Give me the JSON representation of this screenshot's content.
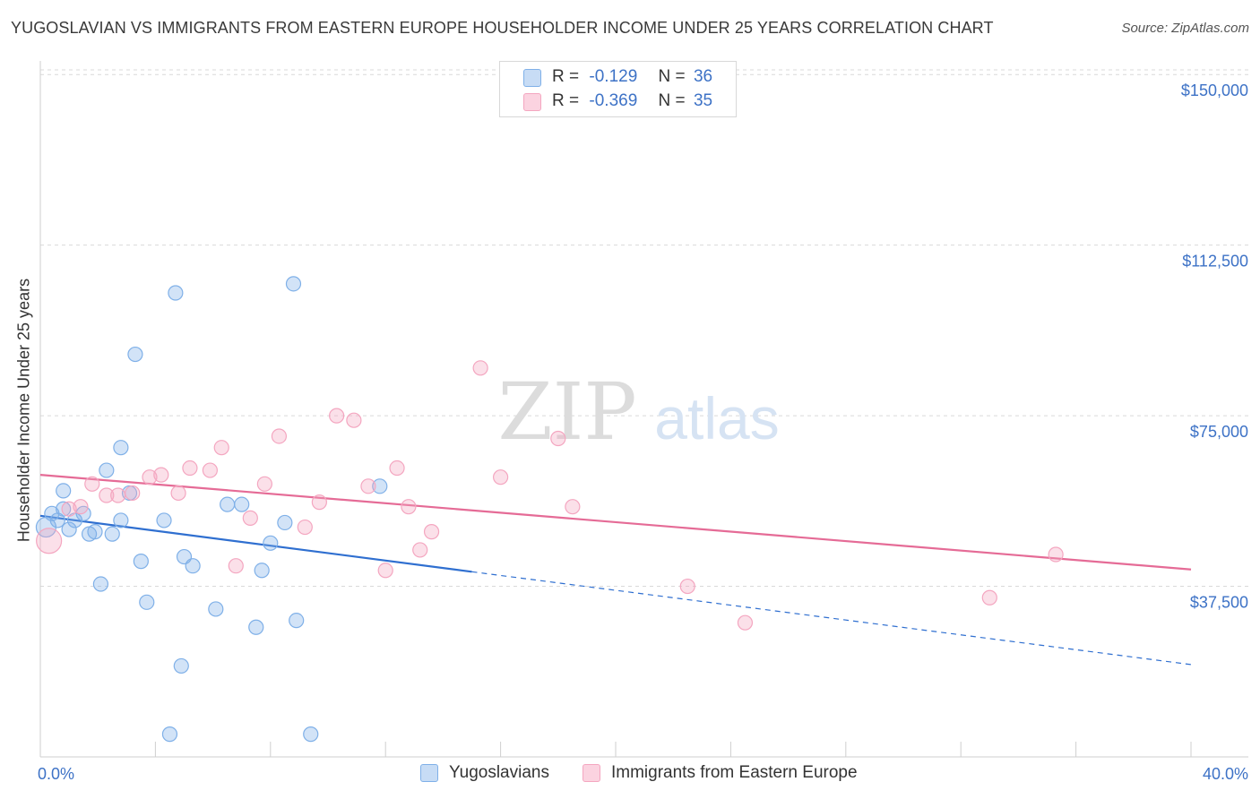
{
  "title": "YUGOSLAVIAN VS IMMIGRANTS FROM EASTERN EUROPE HOUSEHOLDER INCOME UNDER 25 YEARS CORRELATION CHART",
  "source": "Source: ZipAtlas.com",
  "watermark": {
    "zip": "ZIP",
    "atlas": "atlas"
  },
  "legend": {
    "rows": [
      {
        "r_label": "R =",
        "r_value": "-0.129",
        "n_label": "N =",
        "n_value": "36"
      },
      {
        "r_label": "R =",
        "r_value": "-0.369",
        "n_label": "N =",
        "n_value": "35"
      }
    ]
  },
  "chart_data": {
    "type": "scatter",
    "title": "YUGOSLAVIAN VS IMMIGRANTS FROM EASTERN EUROPE HOUSEHOLDER INCOME UNDER 25 YEARS CORRELATION CHART",
    "xlabel": "",
    "ylabel": "Householder Income Under 25 years",
    "xlim": [
      0,
      40
    ],
    "ylim": [
      0,
      153000
    ],
    "x_tick_labels": [
      "0.0%",
      "40.0%"
    ],
    "y_ticks": [
      37500,
      75000,
      112500,
      150000
    ],
    "y_tick_labels": [
      "$37,500",
      "$75,000",
      "$112,500",
      "$150,000"
    ],
    "grid": "horizontal dashed",
    "legend_position": "top-center",
    "series": [
      {
        "name": "Yugoslavians",
        "color": "#7fb0e8",
        "line_color": "#2f6fd0",
        "r": -0.129,
        "n": 36,
        "trend": {
          "x0": 0,
          "y0": 53000,
          "x1": 15,
          "y1": 40700,
          "dash_to_x": 40,
          "dash_to_y": 20300
        },
        "points": [
          [
            0.2,
            50500,
            11
          ],
          [
            0.4,
            53500,
            8
          ],
          [
            0.6,
            52000,
            8
          ],
          [
            0.8,
            54500,
            8
          ],
          [
            1.0,
            50000,
            8
          ],
          [
            0.8,
            58500,
            8
          ],
          [
            1.2,
            52000,
            8
          ],
          [
            1.5,
            53500,
            8
          ],
          [
            1.7,
            49000,
            8
          ],
          [
            1.9,
            49500,
            8
          ],
          [
            2.5,
            49000,
            8
          ],
          [
            2.8,
            52000,
            8
          ],
          [
            2.3,
            63000,
            8
          ],
          [
            2.8,
            68000,
            8
          ],
          [
            3.1,
            58000,
            8
          ],
          [
            3.3,
            88500,
            8
          ],
          [
            3.5,
            43000,
            8
          ],
          [
            3.7,
            34000,
            8
          ],
          [
            4.3,
            52000,
            8
          ],
          [
            4.7,
            102000,
            8
          ],
          [
            5.0,
            44000,
            8
          ],
          [
            5.3,
            42000,
            8
          ],
          [
            6.1,
            32500,
            8
          ],
          [
            6.5,
            55500,
            8
          ],
          [
            7.0,
            55500,
            8
          ],
          [
            7.5,
            28500,
            8
          ],
          [
            7.7,
            41000,
            8
          ],
          [
            8.0,
            47000,
            8
          ],
          [
            8.5,
            51500,
            8
          ],
          [
            8.8,
            104000,
            8
          ],
          [
            8.9,
            30000,
            8
          ],
          [
            11.8,
            59500,
            8
          ],
          [
            2.1,
            38000,
            8
          ],
          [
            4.9,
            20000,
            8
          ],
          [
            4.5,
            5000,
            8
          ],
          [
            9.4,
            5000,
            8
          ]
        ]
      },
      {
        "name": "Immigrants from Eastern Europe",
        "color": "#f4a6c0",
        "line_color": "#e56b96",
        "r": -0.369,
        "n": 35,
        "trend": {
          "x0": 0,
          "y0": 62000,
          "x1": 40,
          "y1": 41200
        },
        "points": [
          [
            0.3,
            47500,
            14
          ],
          [
            1.0,
            54500,
            8
          ],
          [
            1.4,
            55000,
            8
          ],
          [
            1.8,
            60000,
            8
          ],
          [
            2.3,
            57500,
            8
          ],
          [
            2.7,
            57500,
            8
          ],
          [
            3.2,
            58000,
            8
          ],
          [
            3.8,
            61500,
            8
          ],
          [
            4.2,
            62000,
            8
          ],
          [
            4.8,
            58000,
            8
          ],
          [
            5.2,
            63500,
            8
          ],
          [
            5.9,
            63000,
            8
          ],
          [
            6.3,
            68000,
            8
          ],
          [
            6.8,
            42000,
            8
          ],
          [
            7.3,
            52500,
            8
          ],
          [
            7.8,
            60000,
            8
          ],
          [
            8.3,
            70500,
            8
          ],
          [
            9.2,
            50500,
            8
          ],
          [
            9.7,
            56000,
            8
          ],
          [
            10.3,
            75000,
            8
          ],
          [
            10.9,
            74000,
            8
          ],
          [
            11.4,
            59500,
            8
          ],
          [
            12.0,
            41000,
            8
          ],
          [
            12.4,
            63500,
            8
          ],
          [
            12.8,
            55000,
            8
          ],
          [
            13.2,
            45500,
            8
          ],
          [
            13.6,
            49500,
            8
          ],
          [
            15.3,
            85500,
            8
          ],
          [
            16.0,
            61500,
            8
          ],
          [
            18.0,
            70000,
            8
          ],
          [
            18.5,
            55000,
            8
          ],
          [
            22.5,
            37500,
            8
          ],
          [
            24.5,
            29500,
            8
          ],
          [
            33.0,
            35000,
            8
          ],
          [
            35.3,
            44500,
            8
          ]
        ]
      }
    ]
  }
}
